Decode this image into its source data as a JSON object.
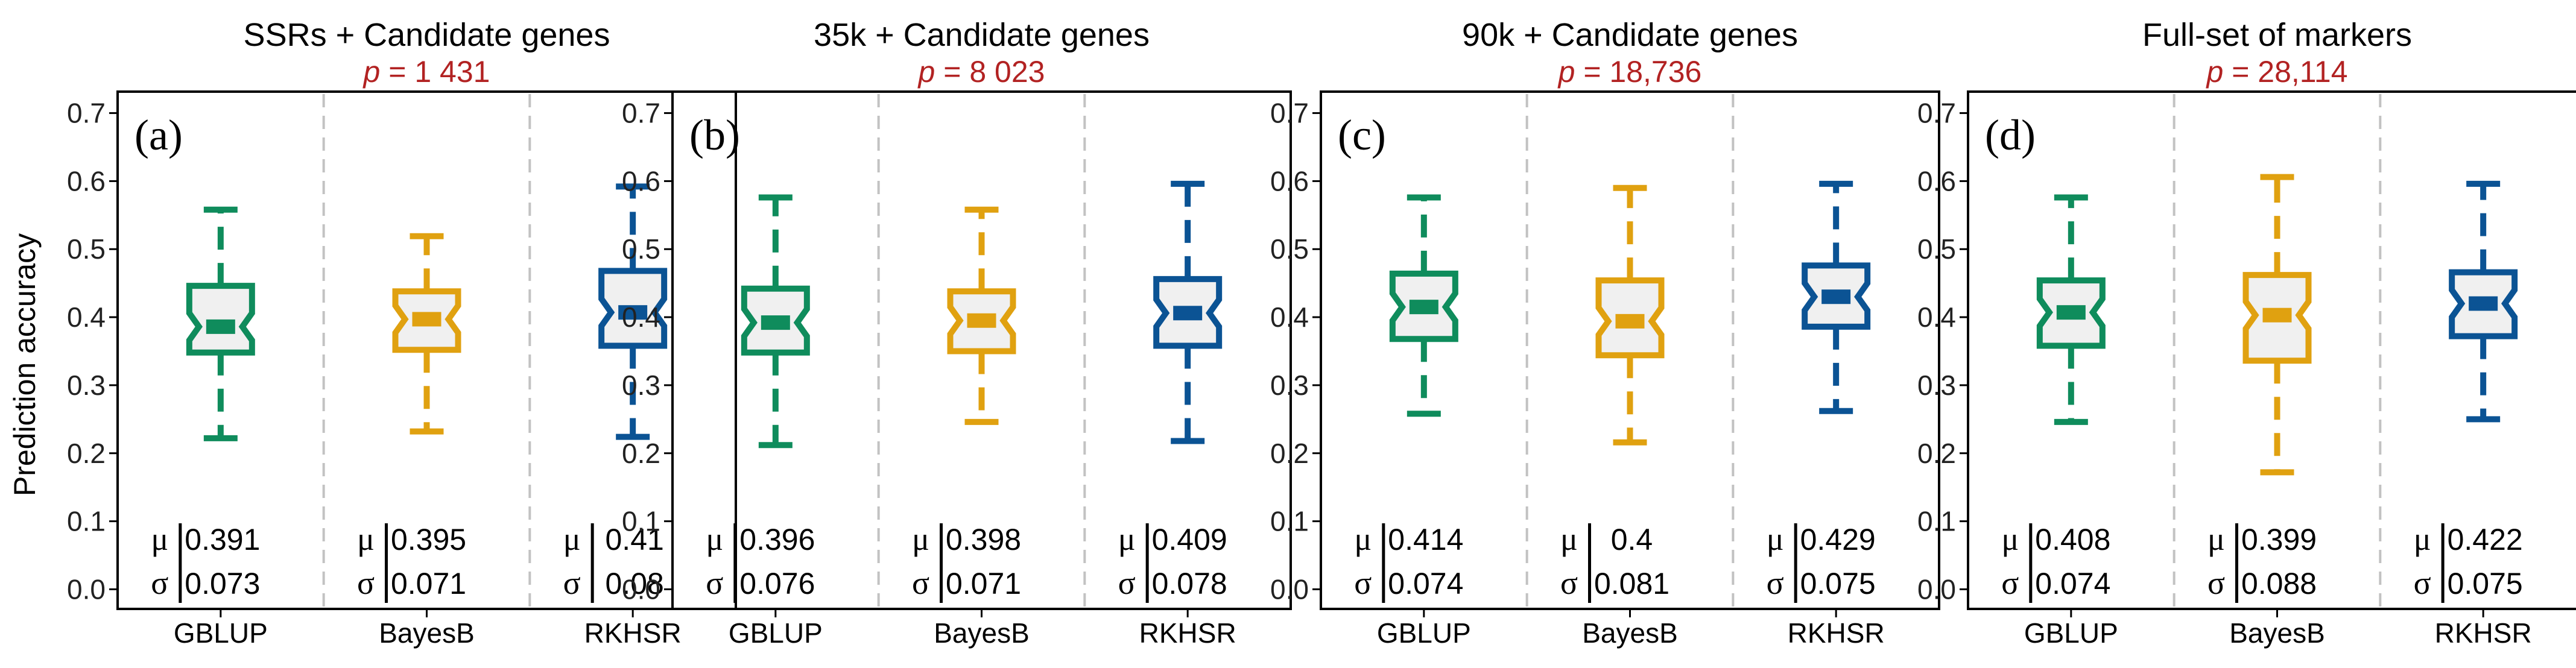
{
  "figure": {
    "ylabel": "Prediction accuracy",
    "mu_symbol": "μ",
    "sigma_symbol": "σ",
    "p_prefix": "p",
    "p_eq": " = "
  },
  "chart_data": [
    {
      "type": "boxplot",
      "panel": "(a)",
      "title": "SSRs + Candidate genes",
      "p_value": "1 431",
      "ylabel": "Prediction accuracy",
      "ylim": [
        -0.02,
        0.72
      ],
      "yticks": [
        "0.0",
        "0.1",
        "0.2",
        "0.3",
        "0.4",
        "0.5",
        "0.6",
        "0.7"
      ],
      "categories": [
        "GBLUP",
        "BayesB",
        "RKHSR"
      ],
      "boxes": [
        {
          "name": "GBLUP",
          "color": "#0f8c5c",
          "whisker_low": 0.222,
          "q1": 0.348,
          "median": 0.386,
          "q3": 0.446,
          "whisker_high": 0.558,
          "notch": 0.02,
          "mean": "0.391",
          "sd": "0.073"
        },
        {
          "name": "BayesB",
          "color": "#e0a110",
          "whisker_low": 0.232,
          "q1": 0.352,
          "median": 0.397,
          "q3": 0.438,
          "whisker_high": 0.519,
          "notch": 0.02,
          "mean": "0.395",
          "sd": "0.071"
        },
        {
          "name": "RKHSR",
          "color": "#0b5394",
          "whisker_low": 0.224,
          "q1": 0.358,
          "median": 0.407,
          "q3": 0.468,
          "whisker_high": 0.592,
          "notch": 0.02,
          "mean": "0.41",
          "sd": "0.08"
        }
      ]
    },
    {
      "type": "boxplot",
      "panel": "(b)",
      "title": "35k + Candidate genes",
      "p_value": "8 023",
      "ylabel": "Prediction accuracy",
      "ylim": [
        -0.02,
        0.72
      ],
      "yticks": [
        "0.0",
        "0.1",
        "0.2",
        "0.3",
        "0.4",
        "0.5",
        "0.6",
        "0.7"
      ],
      "categories": [
        "GBLUP",
        "BayesB",
        "RKHSR"
      ],
      "boxes": [
        {
          "name": "GBLUP",
          "color": "#0f8c5c",
          "whisker_low": 0.212,
          "q1": 0.348,
          "median": 0.392,
          "q3": 0.442,
          "whisker_high": 0.576,
          "notch": 0.02,
          "mean": "0.396",
          "sd": "0.076"
        },
        {
          "name": "BayesB",
          "color": "#e0a110",
          "whisker_low": 0.246,
          "q1": 0.35,
          "median": 0.395,
          "q3": 0.438,
          "whisker_high": 0.558,
          "notch": 0.02,
          "mean": "0.398",
          "sd": "0.071"
        },
        {
          "name": "RKHSR",
          "color": "#0b5394",
          "whisker_low": 0.218,
          "q1": 0.358,
          "median": 0.406,
          "q3": 0.456,
          "whisker_high": 0.596,
          "notch": 0.02,
          "mean": "0.409",
          "sd": "0.078"
        }
      ]
    },
    {
      "type": "boxplot",
      "panel": "(c)",
      "title": "90k + Candidate genes",
      "p_value": "18,736",
      "ylabel": "Prediction accuracy",
      "ylim": [
        -0.02,
        0.72
      ],
      "yticks": [
        "0.0",
        "0.1",
        "0.2",
        "0.3",
        "0.4",
        "0.5",
        "0.6",
        "0.7"
      ],
      "categories": [
        "GBLUP",
        "BayesB",
        "RKHSR"
      ],
      "boxes": [
        {
          "name": "GBLUP",
          "color": "#0f8c5c",
          "whisker_low": 0.258,
          "q1": 0.368,
          "median": 0.415,
          "q3": 0.464,
          "whisker_high": 0.576,
          "notch": 0.02,
          "mean": "0.414",
          "sd": "0.074"
        },
        {
          "name": "BayesB",
          "color": "#e0a110",
          "whisker_low": 0.216,
          "q1": 0.344,
          "median": 0.394,
          "q3": 0.454,
          "whisker_high": 0.59,
          "notch": 0.02,
          "mean": "0.4",
          "sd": "0.081"
        },
        {
          "name": "RKHSR",
          "color": "#0b5394",
          "whisker_low": 0.262,
          "q1": 0.386,
          "median": 0.43,
          "q3": 0.476,
          "whisker_high": 0.596,
          "notch": 0.02,
          "mean": "0.429",
          "sd": "0.075"
        }
      ]
    },
    {
      "type": "boxplot",
      "panel": "(d)",
      "title": "Full-set of markers",
      "p_value": "28,114",
      "ylabel": "Prediction accuracy",
      "ylim": [
        -0.02,
        0.72
      ],
      "yticks": [
        "0.0",
        "0.1",
        "0.2",
        "0.3",
        "0.4",
        "0.5",
        "0.6",
        "0.7"
      ],
      "categories": [
        "GBLUP",
        "BayesB",
        "RKHSR"
      ],
      "boxes": [
        {
          "name": "GBLUP",
          "color": "#0f8c5c",
          "whisker_low": 0.246,
          "q1": 0.358,
          "median": 0.407,
          "q3": 0.454,
          "whisker_high": 0.576,
          "notch": 0.02,
          "mean": "0.408",
          "sd": "0.074"
        },
        {
          "name": "BayesB",
          "color": "#e0a110",
          "whisker_low": 0.172,
          "q1": 0.336,
          "median": 0.403,
          "q3": 0.462,
          "whisker_high": 0.606,
          "notch": 0.02,
          "mean": "0.399",
          "sd": "0.088"
        },
        {
          "name": "RKHSR",
          "color": "#0b5394",
          "whisker_low": 0.25,
          "q1": 0.372,
          "median": 0.42,
          "q3": 0.466,
          "whisker_high": 0.596,
          "notch": 0.02,
          "mean": "0.422",
          "sd": "0.075"
        }
      ]
    }
  ]
}
